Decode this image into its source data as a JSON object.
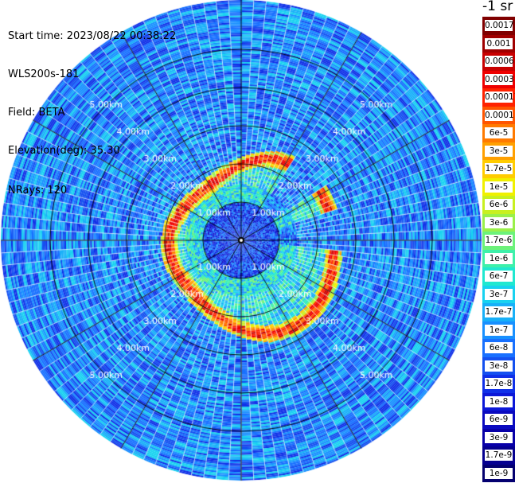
{
  "header": {
    "start_time": "Start time: 2023/08/22 00:38:22",
    "instrument": "WLS200s-181",
    "field": "Field: BETA",
    "elevation": "Elevation(deg): 35.30",
    "nrays": "NRays: 120"
  },
  "colorbar": {
    "title": "-1 sr",
    "labels": [
      "0.0017",
      "0.001",
      "0.0006",
      "0.0003",
      "0.00017",
      "0.0001",
      "6e-5",
      "3e-5",
      "1.7e-5",
      "1e-5",
      "6e-6",
      "3e-6",
      "1.7e-6",
      "1e-6",
      "6e-7",
      "3e-7",
      "1.7e-7",
      "1e-7",
      "6e-8",
      "3e-8",
      "1.7e-8",
      "1e-8",
      "6e-9",
      "3e-9",
      "1.7e-9",
      "1e-9"
    ],
    "colors": [
      "#800000",
      "#a00000",
      "#c80000",
      "#ee0000",
      "#ff2200",
      "#ff5500",
      "#ff7a00",
      "#ffa000",
      "#ffcc00",
      "#f0f000",
      "#c8f020",
      "#9af04a",
      "#6cf27a",
      "#3ef0aa",
      "#20e8d0",
      "#18d2f0",
      "#18b0f8",
      "#1890ff",
      "#1870ff",
      "#1450f0",
      "#1030e8",
      "#0c18d8",
      "#0a0ac0",
      "#0800a8",
      "#060090",
      "#040070"
    ]
  },
  "chart_data": {
    "type": "heatmap",
    "subtype": "polar PPI scan",
    "field": "BETA",
    "elevation_deg": 35.3,
    "n_rays": 120,
    "range_rings_km": [
      1,
      2,
      3,
      4,
      5
    ],
    "range_ring_labels": [
      "1.00km",
      "2.00km",
      "3.00km",
      "4.00km",
      "5.00km"
    ],
    "azimuth_lines_deg": [
      0,
      30,
      60,
      90,
      120,
      150,
      180,
      210,
      240,
      270,
      300,
      330
    ],
    "color_scale": "log",
    "value_range": [
      1e-09,
      0.0017
    ],
    "features": {
      "cloud_layer_range_km": [
        2.0,
        2.6
      ],
      "cloud_layer_peak_beta": 0.0001
    }
  }
}
